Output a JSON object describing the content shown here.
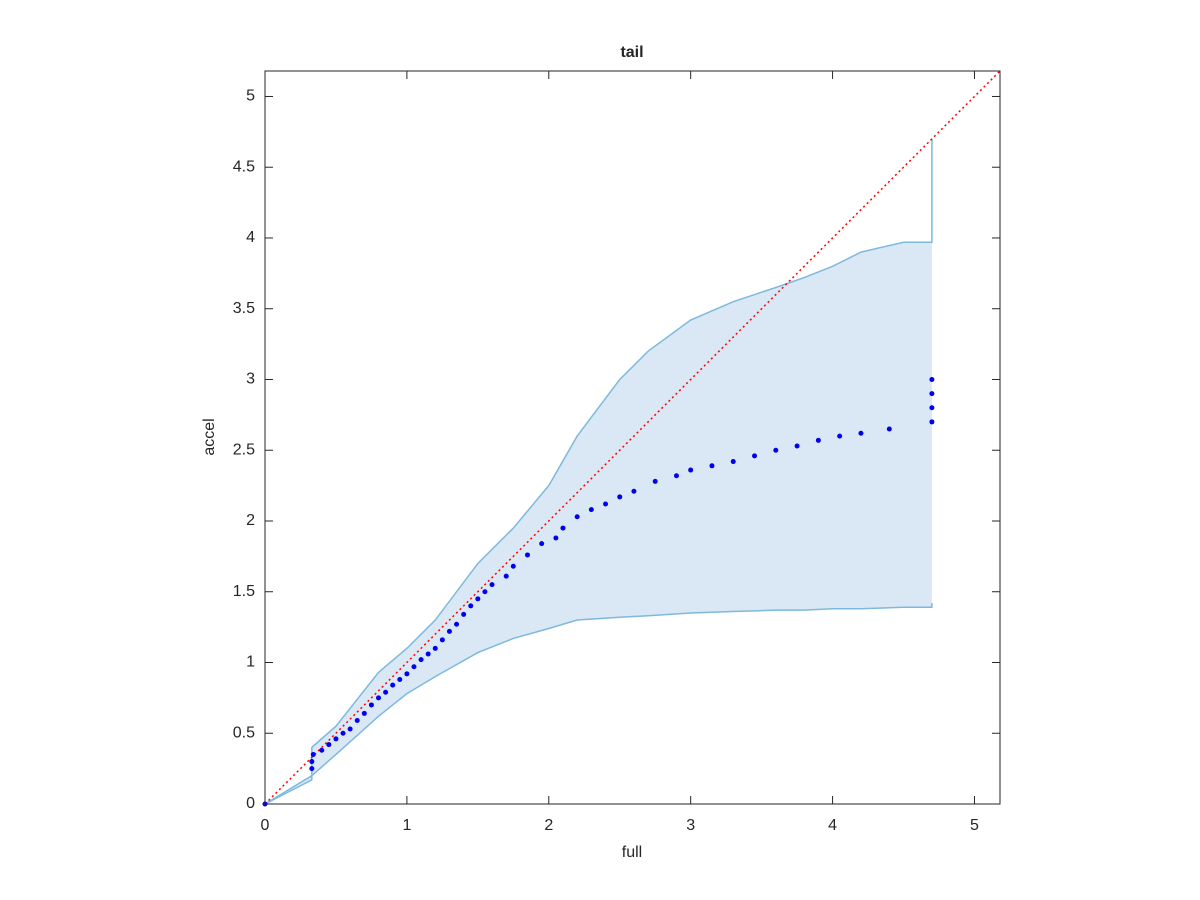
{
  "chart_data": {
    "type": "scatter",
    "title": "tail",
    "xlabel": "full",
    "ylabel": "accel",
    "xlim": [
      0,
      5.18
    ],
    "ylim": [
      0,
      5.18
    ],
    "xticks": [
      0,
      1,
      2,
      3,
      4,
      5
    ],
    "yticks": [
      0,
      0.5,
      1,
      1.5,
      2,
      2.5,
      3,
      3.5,
      4,
      4.5,
      5
    ],
    "band": {
      "color": "#7db9dd",
      "fill": "#d9e8f4",
      "x": [
        0,
        0.33,
        0.33,
        0.5,
        0.8,
        1,
        1.2,
        1.5,
        1.75,
        2,
        2.2,
        2.5,
        2.7,
        3,
        3.3,
        3.6,
        3.8,
        4,
        4.2,
        4.5,
        4.7,
        4.7
      ],
      "upper": [
        0,
        0.2,
        0.4,
        0.55,
        0.93,
        1.1,
        1.3,
        1.7,
        1.95,
        2.25,
        2.6,
        3.0,
        3.2,
        3.42,
        3.55,
        3.65,
        3.72,
        3.8,
        3.9,
        3.97,
        3.97,
        4.7
      ],
      "lower": [
        0,
        0.17,
        0.2,
        0.35,
        0.62,
        0.78,
        0.9,
        1.07,
        1.17,
        1.24,
        1.3,
        1.32,
        1.33,
        1.35,
        1.36,
        1.37,
        1.37,
        1.38,
        1.38,
        1.39,
        1.39,
        1.42
      ]
    },
    "reference": {
      "color": "#ff0000",
      "x": [
        0,
        5.18
      ],
      "values": [
        0,
        5.18
      ]
    },
    "points": {
      "color": "#0000ee",
      "x": [
        0,
        0.33,
        0.33,
        0.34,
        0.4,
        0.45,
        0.5,
        0.55,
        0.6,
        0.65,
        0.7,
        0.75,
        0.8,
        0.85,
        0.9,
        0.95,
        1.0,
        1.05,
        1.1,
        1.15,
        1.2,
        1.25,
        1.3,
        1.35,
        1.4,
        1.45,
        1.5,
        1.55,
        1.6,
        1.7,
        1.75,
        1.85,
        1.95,
        2.05,
        2.1,
        2.2,
        2.3,
        2.4,
        2.5,
        2.6,
        2.75,
        2.9,
        3.0,
        3.15,
        3.3,
        3.45,
        3.6,
        3.75,
        3.9,
        4.05,
        4.2,
        4.4,
        4.7,
        4.7,
        4.7,
        4.7
      ],
      "values": [
        0,
        0.25,
        0.3,
        0.35,
        0.38,
        0.42,
        0.46,
        0.5,
        0.53,
        0.59,
        0.64,
        0.7,
        0.75,
        0.79,
        0.84,
        0.88,
        0.92,
        0.97,
        1.02,
        1.06,
        1.1,
        1.16,
        1.22,
        1.27,
        1.34,
        1.4,
        1.45,
        1.5,
        1.55,
        1.61,
        1.68,
        1.76,
        1.84,
        1.88,
        1.95,
        2.03,
        2.08,
        2.12,
        2.17,
        2.21,
        2.28,
        2.32,
        2.36,
        2.39,
        2.42,
        2.46,
        2.5,
        2.53,
        2.57,
        2.6,
        2.62,
        2.65,
        2.7,
        2.8,
        2.9,
        3.0
      ]
    }
  }
}
